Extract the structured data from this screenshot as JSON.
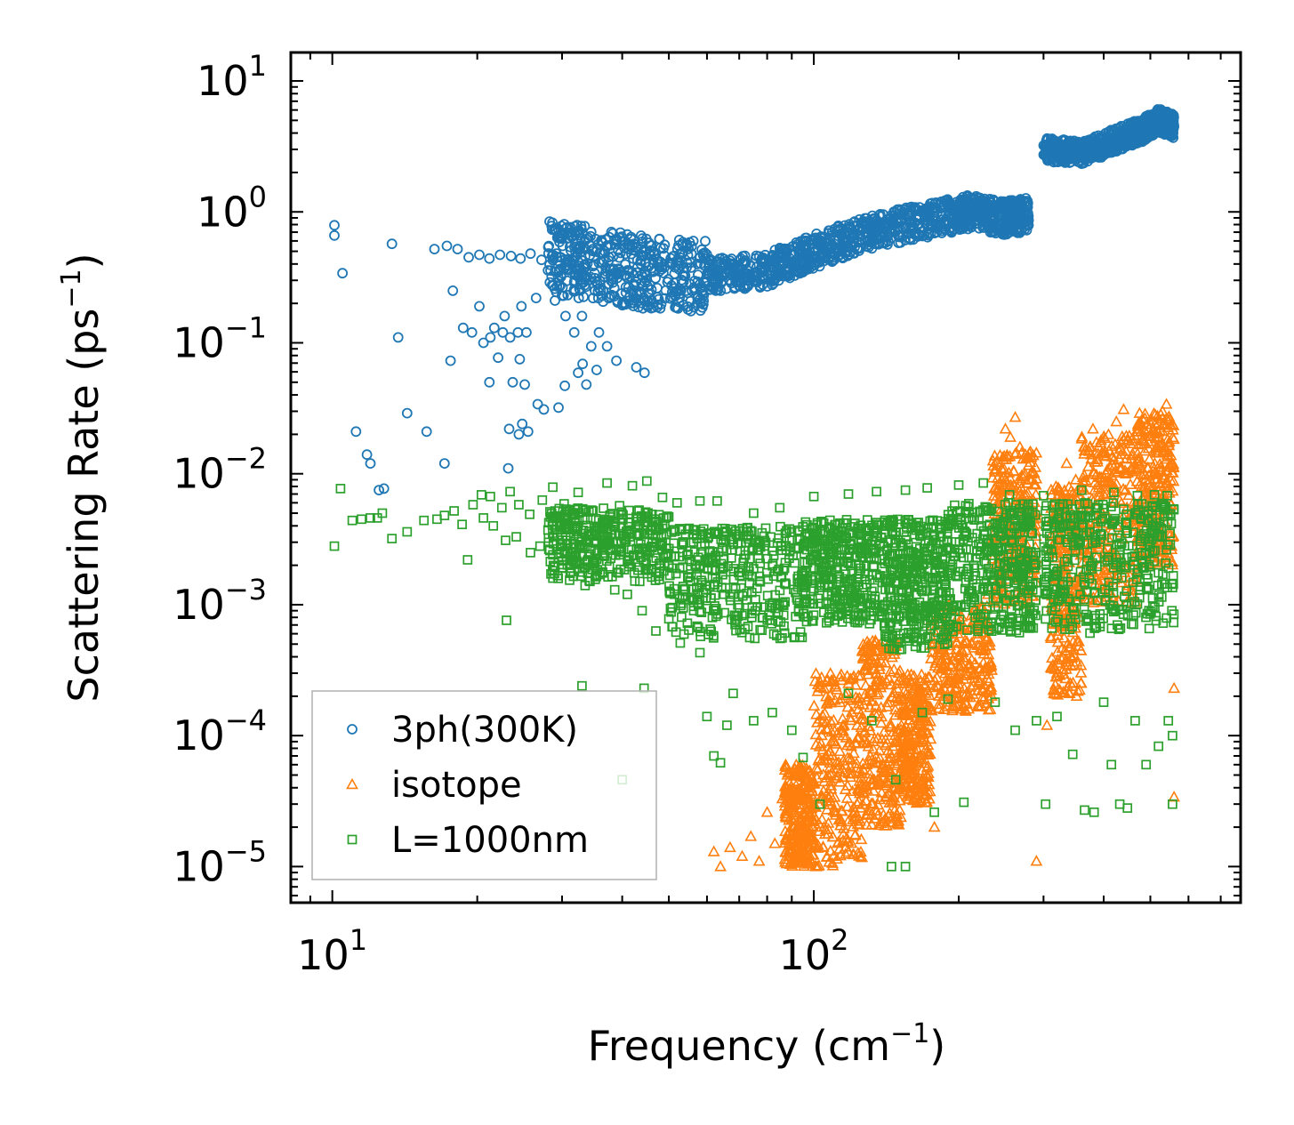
{
  "chart_data": {
    "type": "scatter",
    "xscale": "log",
    "yscale": "log",
    "xlim": [
      8.2,
      770
    ],
    "ylim": [
      5.3e-06,
      16.5
    ],
    "xlabel": "Frequency (cm",
    "xlabel_sup": "−1",
    "xlabel_end": ")",
    "ylabel": "Scattering Rate (ps",
    "ylabel_sup": "−1",
    "ylabel_end": ")",
    "x_ticks": [
      {
        "value": 10,
        "base": "10",
        "exp": "1"
      },
      {
        "value": 100,
        "base": "10",
        "exp": "2"
      }
    ],
    "y_ticks": [
      {
        "value": 10,
        "base": "10",
        "exp": "1"
      },
      {
        "value": 1,
        "base": "10",
        "exp": "0"
      },
      {
        "value": 0.1,
        "base": "10",
        "exp": "−1"
      },
      {
        "value": 0.01,
        "base": "10",
        "exp": "−2"
      },
      {
        "value": 0.001,
        "base": "10",
        "exp": "−3"
      },
      {
        "value": 0.0001,
        "base": "10",
        "exp": "−4"
      },
      {
        "value": 1e-05,
        "base": "10",
        "exp": "−5"
      }
    ],
    "legend_position": "lower-left",
    "series": [
      {
        "name": "3ph(300K)",
        "marker": "circle",
        "color": "#1f77b4",
        "points": [
          [
            10.1,
            0.79
          ],
          [
            10.1,
            0.66
          ],
          [
            10.5,
            0.34
          ],
          [
            13.3,
            0.57
          ],
          [
            16.3,
            0.52
          ],
          [
            17.3,
            0.55
          ],
          [
            18.2,
            0.52
          ],
          [
            19.2,
            0.45
          ],
          [
            20.2,
            0.47
          ],
          [
            21.2,
            0.44
          ],
          [
            22.3,
            0.47
          ],
          [
            23.5,
            0.46
          ],
          [
            24.6,
            0.44
          ],
          [
            25.8,
            0.48
          ],
          [
            27.2,
            0.43
          ],
          [
            28.6,
            0.46
          ],
          [
            17.8,
            0.25
          ],
          [
            18.7,
            0.13
          ],
          [
            20.2,
            0.19
          ],
          [
            21.7,
            0.13
          ],
          [
            22.8,
            0.16
          ],
          [
            24.7,
            0.19
          ],
          [
            26.5,
            0.22
          ],
          [
            13.7,
            0.11
          ],
          [
            17.6,
            0.073
          ],
          [
            19.5,
            0.12
          ],
          [
            20.6,
            0.1
          ],
          [
            21.3,
            0.11
          ],
          [
            22.6,
            0.12
          ],
          [
            23.4,
            0.11
          ],
          [
            24.3,
            0.12
          ],
          [
            25.3,
            0.12
          ],
          [
            21.2,
            0.05
          ],
          [
            22.1,
            0.077
          ],
          [
            23.7,
            0.05
          ],
          [
            24.5,
            0.075
          ],
          [
            25.1,
            0.048
          ],
          [
            26.7,
            0.034
          ],
          [
            27.5,
            0.031
          ],
          [
            23.3,
            0.022
          ],
          [
            24.4,
            0.02
          ],
          [
            24.8,
            0.024
          ],
          [
            25.5,
            0.021
          ],
          [
            14.3,
            0.029
          ],
          [
            15.7,
            0.021
          ],
          [
            11.2,
            0.021
          ],
          [
            11.8,
            0.014
          ],
          [
            12.0,
            0.012
          ],
          [
            12.5,
            0.0075
          ],
          [
            12.8,
            0.0077
          ],
          [
            17.1,
            0.012
          ],
          [
            23.2,
            0.011
          ],
          [
            29.0,
            0.21
          ],
          [
            30.5,
            0.16
          ],
          [
            31.8,
            0.12
          ],
          [
            33.0,
            0.16
          ],
          [
            34.5,
            0.094
          ],
          [
            35.8,
            0.12
          ],
          [
            37.2,
            0.094
          ],
          [
            38.9,
            0.073
          ],
          [
            30.4,
            0.047
          ],
          [
            32.4,
            0.059
          ],
          [
            33.7,
            0.048
          ],
          [
            35.4,
            0.062
          ],
          [
            29.5,
            0.032
          ],
          [
            33.1,
            0.069
          ],
          [
            44.5,
            0.059
          ],
          [
            42.8,
            0.065
          ]
        ],
        "trend": [
          [
            28,
            0.45
          ],
          [
            35,
            0.4
          ],
          [
            45,
            0.34
          ],
          [
            60,
            0.33
          ],
          [
            80,
            0.36
          ],
          [
            100,
            0.5
          ],
          [
            130,
            0.7
          ],
          [
            170,
            0.85
          ],
          [
            210,
            1.0
          ],
          [
            250,
            0.9
          ],
          [
            280,
            0.95
          ],
          [
            300,
            3.0
          ],
          [
            360,
            2.8
          ],
          [
            420,
            3.5
          ],
          [
            480,
            4.2
          ],
          [
            520,
            5.0
          ],
          [
            560,
            4.5
          ]
        ]
      },
      {
        "name": "isotope",
        "marker": "triangle",
        "color": "#ff7f0e",
        "points": [
          [
            62,
            1.3e-05
          ],
          [
            64,
            1e-05
          ],
          [
            67,
            1.4e-05
          ],
          [
            71,
            1.2e-05
          ],
          [
            74,
            1.7e-05
          ],
          [
            77,
            1.1e-05
          ],
          [
            80,
            2.6e-05
          ],
          [
            83,
            1.5e-05
          ],
          [
            86,
            3.3e-05
          ],
          [
            88,
            1.6e-05
          ],
          [
            91,
            5.1e-05
          ],
          [
            94,
            2.3e-05
          ],
          [
            97,
            1.2e-05
          ],
          [
            101,
            1e-05
          ],
          [
            105,
            2e-05
          ],
          [
            110,
            1.2e-05
          ],
          [
            115,
            0.0001
          ],
          [
            118,
            0.00025
          ],
          [
            123,
            0.00012
          ],
          [
            127,
            0.00032
          ],
          [
            132,
            0.00014
          ],
          [
            137,
            0.00032
          ],
          [
            143,
            0.0005
          ],
          [
            150,
            0.0003
          ],
          [
            155,
            0.00016
          ],
          [
            160,
            8.5e-05
          ],
          [
            165,
            0.00012
          ],
          [
            170,
            3.5e-05
          ],
          [
            178,
            2e-05
          ],
          [
            184,
            0.00021
          ],
          [
            193,
            0.00035
          ],
          [
            210,
            0.00035
          ],
          [
            230,
            0.0012
          ],
          [
            245,
            0.0054
          ],
          [
            250,
            0.022
          ],
          [
            256,
            0.019
          ],
          [
            262,
            0.027
          ],
          [
            268,
            0.016
          ],
          [
            275,
            0.014
          ],
          [
            290,
            1.1e-05
          ],
          [
            305,
            0.00012
          ],
          [
            320,
            0.0003
          ],
          [
            335,
            0.012
          ],
          [
            350,
            0.009
          ],
          [
            365,
            0.016
          ],
          [
            380,
            0.022
          ],
          [
            395,
            0.018
          ],
          [
            410,
            0.015
          ],
          [
            425,
            0.025
          ],
          [
            440,
            0.031
          ],
          [
            455,
            0.017
          ],
          [
            470,
            0.012
          ],
          [
            485,
            0.01
          ],
          [
            500,
            0.009
          ],
          [
            515,
            0.016
          ],
          [
            530,
            0.03
          ],
          [
            540,
            0.034
          ],
          [
            548,
            0.026
          ],
          [
            556,
            0.012
          ],
          [
            560,
            3.4e-05
          ],
          [
            560,
            0.00023
          ]
        ],
        "bands": [
          {
            "x0": 87,
            "x1": 100,
            "ylo": 1e-05,
            "yhi": 6e-05
          },
          {
            "x0": 100,
            "x1": 126,
            "ylo": 1e-05,
            "yhi": 0.0003
          },
          {
            "x0": 126,
            "x1": 152,
            "ylo": 2e-05,
            "yhi": 0.00055
          },
          {
            "x0": 152,
            "x1": 175,
            "ylo": 3e-05,
            "yhi": 0.0003
          },
          {
            "x0": 175,
            "x1": 235,
            "ylo": 0.00015,
            "yhi": 0.001
          },
          {
            "x0": 235,
            "x1": 290,
            "ylo": 0.001,
            "yhi": 0.015
          },
          {
            "x0": 310,
            "x1": 360,
            "ylo": 0.0002,
            "yhi": 0.008
          },
          {
            "x0": 360,
            "x1": 470,
            "ylo": 0.001,
            "yhi": 0.02
          },
          {
            "x0": 470,
            "x1": 560,
            "ylo": 0.002,
            "yhi": 0.03
          }
        ]
      },
      {
        "name": "L=1000nm",
        "marker": "square",
        "color": "#2ca02c",
        "points": [
          [
            10.1,
            0.0028
          ],
          [
            10.4,
            0.0077
          ],
          [
            11.0,
            0.0044
          ],
          [
            11.5,
            0.0045
          ],
          [
            12.0,
            0.0046
          ],
          [
            12.4,
            0.0046
          ],
          [
            12.7,
            0.005
          ],
          [
            13.3,
            0.0032
          ],
          [
            14.3,
            0.0036
          ],
          [
            15.5,
            0.0044
          ],
          [
            16.5,
            0.0045
          ],
          [
            17.1,
            0.0048
          ],
          [
            17.9,
            0.0052
          ],
          [
            18.6,
            0.0041
          ],
          [
            19.6,
            0.0058
          ],
          [
            20.4,
            0.0069
          ],
          [
            21.3,
            0.0067
          ],
          [
            22.5,
            0.0055
          ],
          [
            23.4,
            0.0073
          ],
          [
            24.4,
            0.0058
          ],
          [
            25.7,
            0.0049
          ],
          [
            27.3,
            0.0063
          ],
          [
            28.7,
            0.0079
          ],
          [
            30.3,
            0.0059
          ],
          [
            32.4,
            0.0072
          ],
          [
            34.8,
            0.0052
          ],
          [
            37.2,
            0.0085
          ],
          [
            39.5,
            0.0057
          ],
          [
            42.0,
            0.0081
          ],
          [
            45.0,
            0.0088
          ],
          [
            48.5,
            0.0066
          ],
          [
            52.0,
            0.006
          ],
          [
            58.0,
            0.0062
          ],
          [
            63.0,
            0.0062
          ],
          [
            20.6,
            0.0046
          ],
          [
            21.6,
            0.004
          ],
          [
            22.9,
            0.0031
          ],
          [
            24.1,
            0.0033
          ],
          [
            25.8,
            0.0025
          ],
          [
            27.0,
            0.0028
          ],
          [
            28.8,
            0.0033
          ],
          [
            19.1,
            0.0022
          ],
          [
            23.0,
            0.00076
          ],
          [
            30.1,
            0.0019
          ],
          [
            33.5,
            0.0014
          ],
          [
            36.0,
            0.0017
          ],
          [
            38.6,
            0.0013
          ],
          [
            41.0,
            0.0012
          ],
          [
            44.0,
            0.0009
          ],
          [
            47.0,
            0.00063
          ],
          [
            50.0,
            0.00078
          ],
          [
            52.8,
            0.00051
          ],
          [
            55.0,
            0.00064
          ],
          [
            58.0,
            0.00043
          ],
          [
            60.0,
            0.00014
          ],
          [
            62.0,
            7e-05
          ],
          [
            64.0,
            6.2e-05
          ],
          [
            66.0,
            0.00012
          ],
          [
            33.0,
            0.00024
          ],
          [
            44.4,
            0.00023
          ],
          [
            40.0,
            4.6e-05
          ],
          [
            68.0,
            0.00021
          ],
          [
            75.0,
            0.00013
          ],
          [
            82.0,
            0.00015
          ],
          [
            90.0,
            0.00011
          ],
          [
            95.0,
            6.8e-05
          ],
          [
            103.0,
            3e-05
          ],
          [
            118.0,
            0.00021
          ],
          [
            132.0,
            0.00013
          ],
          [
            145.0,
            1e-05
          ],
          [
            148.0,
            4.6e-05
          ],
          [
            155.0,
            1e-05
          ],
          [
            168.0,
            0.00015
          ],
          [
            178.0,
            2.6e-05
          ],
          [
            190.0,
            0.00019
          ],
          [
            205.0,
            3.1e-05
          ],
          [
            238.0,
            0.00018
          ],
          [
            262.0,
            0.00011
          ],
          [
            290.0,
            0.00013
          ],
          [
            303.0,
            3e-05
          ],
          [
            320.0,
            0.00014
          ],
          [
            345.0,
            7.2e-05
          ],
          [
            365.0,
            2.7e-05
          ],
          [
            382.0,
            2.6e-05
          ],
          [
            400.0,
            0.00018
          ],
          [
            415.0,
            6e-05
          ],
          [
            432.0,
            3e-05
          ],
          [
            448.0,
            2.8e-05
          ],
          [
            465.0,
            0.00013
          ],
          [
            490.0,
            6e-05
          ],
          [
            520.0,
            8.3e-05
          ],
          [
            545.0,
            0.00013
          ],
          [
            556.0,
            3e-05
          ],
          [
            556.0,
            0.0001
          ],
          [
            542.0,
            0.0068
          ],
          [
            510.0,
            0.0069
          ],
          [
            470.0,
            0.0068
          ],
          [
            420.0,
            0.0072
          ],
          [
            360.0,
            0.0075
          ],
          [
            300.0,
            0.0068
          ],
          [
            255.0,
            0.0069
          ],
          [
            225.0,
            0.0085
          ],
          [
            200.0,
            0.0082
          ],
          [
            172.0,
            0.0078
          ],
          [
            155.0,
            0.0075
          ],
          [
            135.0,
            0.0073
          ],
          [
            118.0,
            0.007
          ],
          [
            100.0,
            0.0067
          ],
          [
            85.0,
            0.0055
          ],
          [
            75.0,
            0.005
          ]
        ],
        "bands": [
          {
            "x0": 28,
            "x1": 50,
            "ylo": 0.0015,
            "yhi": 0.0055
          },
          {
            "x0": 50,
            "x1": 95,
            "ylo": 0.00055,
            "yhi": 0.004
          },
          {
            "x0": 95,
            "x1": 140,
            "ylo": 0.0007,
            "yhi": 0.0045
          },
          {
            "x0": 140,
            "x1": 190,
            "ylo": 0.00045,
            "yhi": 0.0045
          },
          {
            "x0": 190,
            "x1": 290,
            "ylo": 0.0006,
            "yhi": 0.006
          },
          {
            "x0": 300,
            "x1": 560,
            "ylo": 0.0006,
            "yhi": 0.006
          }
        ]
      }
    ]
  }
}
